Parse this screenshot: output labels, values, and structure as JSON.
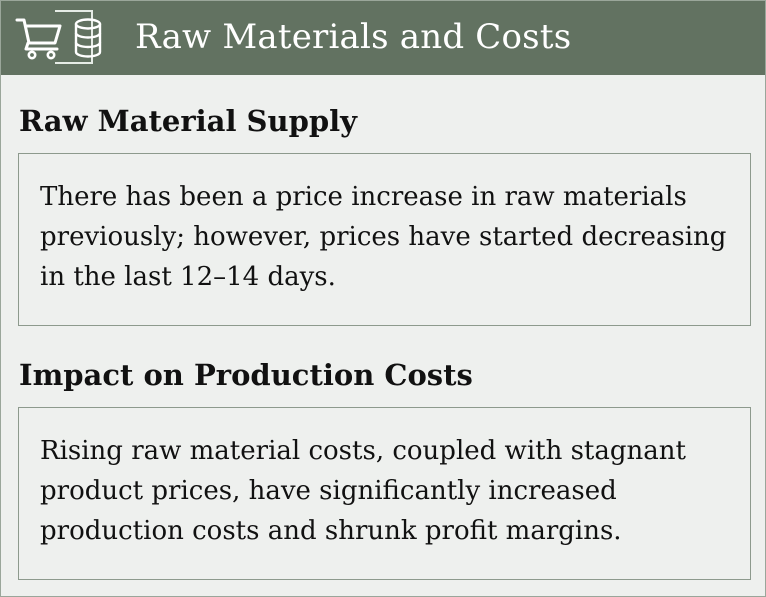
{
  "header": {
    "title": "Raw Materials and Costs",
    "icons": [
      "shopping-cart-icon",
      "database-icon"
    ],
    "background_color": "#627261"
  },
  "sections": [
    {
      "heading": "Raw Material Supply",
      "text": "There has been a price increase in raw materials previously; however, prices have started decreasing in the last 12–14 days."
    },
    {
      "heading": "Impact on Production Costs",
      "text": "Rising raw material costs, coupled with stagnant product prices, have significantly increased production costs and shrunk profit margins."
    }
  ],
  "colors": {
    "page_background": "#eef0ee",
    "box_border": "#8d9a8d",
    "text": "#111111",
    "header_text": "#ffffff"
  }
}
